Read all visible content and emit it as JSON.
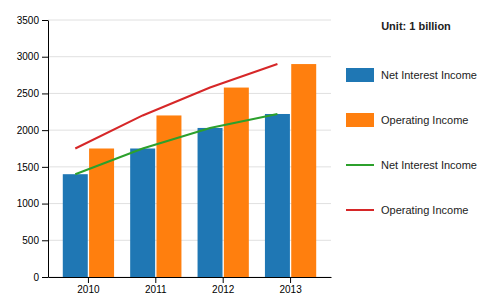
{
  "chart_data": {
    "type": "bar",
    "subtitle": "Unit: 1 billion",
    "categories": [
      "2010",
      "2011",
      "2012",
      "2013"
    ],
    "series": [
      {
        "name": "Net Interest Income",
        "type": "bar",
        "values": [
          1400,
          1750,
          2030,
          2220
        ]
      },
      {
        "name": "Operating Income",
        "type": "bar",
        "values": [
          1750,
          2200,
          2580,
          2900
        ]
      },
      {
        "name": "Net Interest Income",
        "type": "line",
        "values": [
          1400,
          1750,
          2030,
          2220
        ]
      },
      {
        "name": "Operating Income",
        "type": "line",
        "values": [
          1750,
          2200,
          2580,
          2900
        ]
      }
    ],
    "ylim": [
      0,
      3500
    ],
    "yticks": [
      0,
      500,
      1000,
      1500,
      2000,
      2500,
      3000,
      3500
    ],
    "grid": true,
    "legend": "right"
  }
}
